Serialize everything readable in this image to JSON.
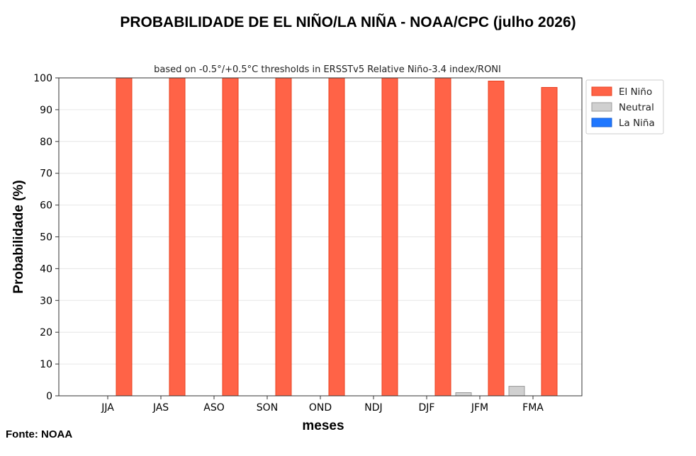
{
  "header": {
    "title": "PROBABILIDADE DE EL NIÑO/LA NIÑA - NOAA/CPC (julho 2026)"
  },
  "footer": {
    "source": "Fonte: NOAA"
  },
  "chart_data": {
    "type": "bar",
    "title": "PROBABILIDADE DE EL NIÑO/LA NIÑA - NOAA/CPC (julho 2026)",
    "subtitle": "based on -0.5°/+0.5°C thresholds in ERSSTv5 Relative Niño-3.4 index/RONI",
    "xlabel": "meses",
    "ylabel": "Probabilidade (%)",
    "ylim": [
      0,
      100
    ],
    "yticks": [
      0,
      10,
      20,
      30,
      40,
      50,
      60,
      70,
      80,
      90,
      100
    ],
    "categories": [
      "JJA",
      "JAS",
      "ASO",
      "SON",
      "OND",
      "NDJ",
      "DJF",
      "JFM",
      "FMA"
    ],
    "series": [
      {
        "name": "La Niña",
        "color": "#1f77ff",
        "values": [
          0,
          0,
          0,
          0,
          0,
          0,
          0,
          0,
          0
        ]
      },
      {
        "name": "Neutral",
        "color": "#d0d0d0",
        "values": [
          0,
          0,
          0,
          0,
          0,
          0,
          0,
          1,
          3
        ]
      },
      {
        "name": "El Niño",
        "color": "#ff6347",
        "values": [
          100,
          100,
          100,
          100,
          100,
          100,
          100,
          99,
          97
        ]
      }
    ],
    "legend_order": [
      "El Niño",
      "Neutral",
      "La Niña"
    ],
    "legend_position": "right",
    "grid": true
  }
}
